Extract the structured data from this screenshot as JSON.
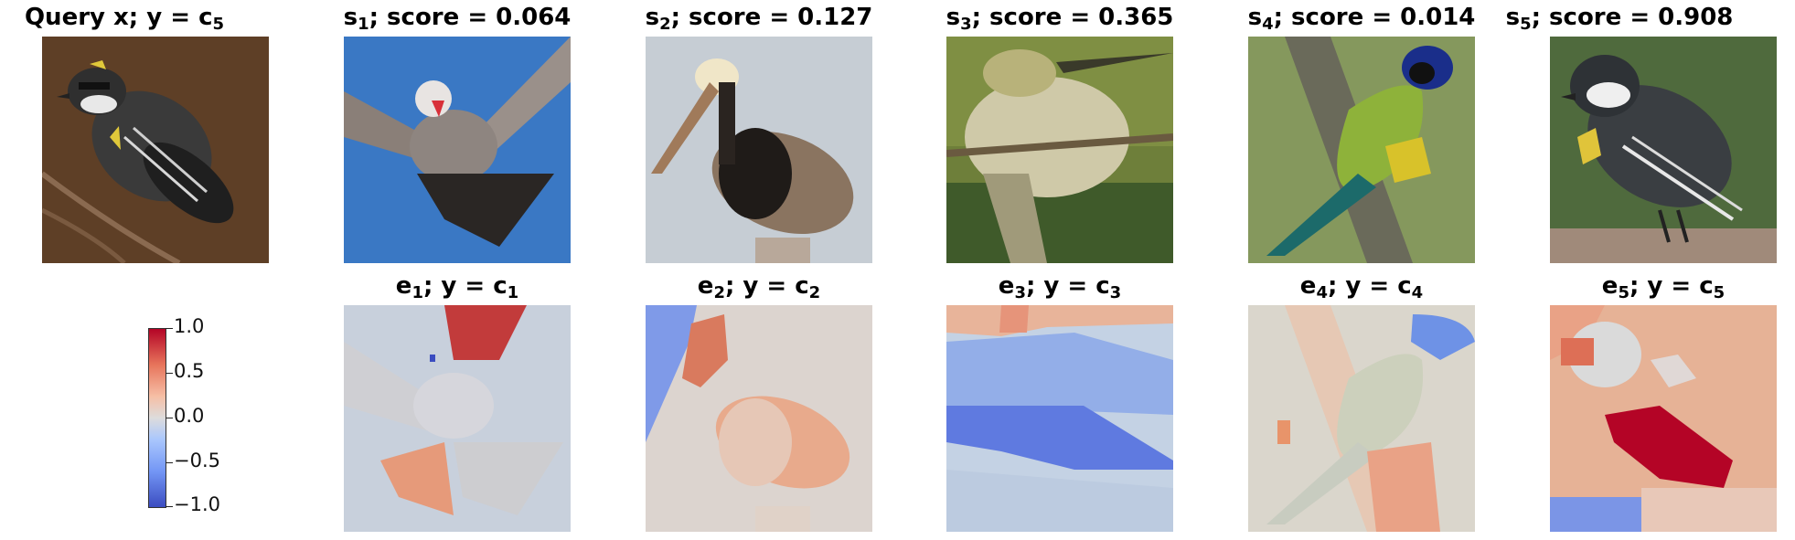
{
  "query": {
    "title_main": "Query x; y = c",
    "title_sub": "5"
  },
  "supports": [
    {
      "s_main": "s",
      "s_sub": "1",
      "score_text": "; score = 0.064",
      "e_main": "e",
      "e_sub": "1",
      "e_text": "; y = c",
      "c_sub": "1"
    },
    {
      "s_main": "s",
      "s_sub": "2",
      "score_text": "; score = 0.127",
      "e_main": "e",
      "e_sub": "2",
      "e_text": "; y = c",
      "c_sub": "2"
    },
    {
      "s_main": "s",
      "s_sub": "3",
      "score_text": "; score = 0.365",
      "e_main": "e",
      "e_sub": "3",
      "e_text": "; y = c",
      "c_sub": "3"
    },
    {
      "s_main": "s",
      "s_sub": "4",
      "score_text": "; score = 0.014",
      "e_main": "e",
      "e_sub": "4",
      "e_text": "; y = c",
      "c_sub": "4"
    },
    {
      "s_main": "s",
      "s_sub": "5",
      "score_text": "; score = 0.908",
      "e_main": "e",
      "e_sub": "5",
      "e_text": "; y = c",
      "c_sub": "5"
    }
  ],
  "colorbar": {
    "ticks": [
      "1.0",
      "0.5",
      "0.0",
      "−0.5",
      "−1.0"
    ],
    "colormap": [
      "#b40426",
      "#dddcdc",
      "#3b4cc0"
    ]
  },
  "colors": {
    "query_bg": "#6b4a2e",
    "blue_sky": "#3a78c4",
    "pelican_bg": "#c6cdd4",
    "green_bg": "#6e7f3a",
    "jay_bg": "#7a8f55",
    "warbler_bg": "#4f6a3d"
  }
}
